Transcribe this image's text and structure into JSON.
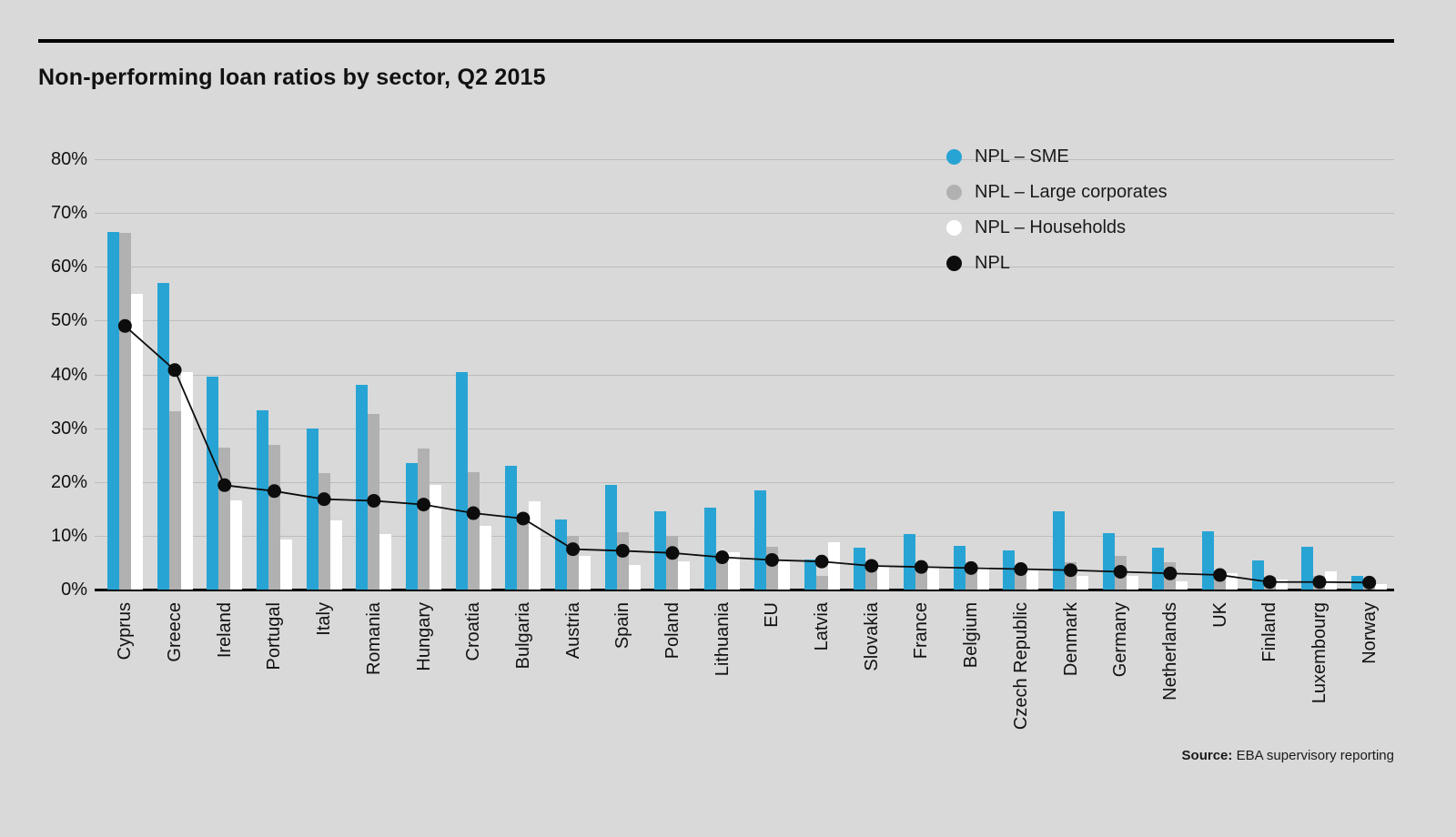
{
  "title": "Non-performing loan ratios by sector, Q2 2015",
  "source": {
    "label": "Source:",
    "text": " EBA supervisory reporting"
  },
  "colors": {
    "background": "#d9d9d9",
    "accent_blue": "#28a4d4",
    "bar_gray": "#b1b1b1",
    "bar_white": "#ffffff",
    "line_black": "#0d0d0d",
    "gridline": "#bcbcbc",
    "text": "#111111"
  },
  "chart_data": {
    "type": "bar",
    "title": "Non-performing loan ratios by sector, Q2 2015",
    "categories": [
      "Cyprus",
      "Greece",
      "Ireland",
      "Portugal",
      "Italy",
      "Romania",
      "Hungary",
      "Croatia",
      "Bulgaria",
      "Austria",
      "Spain",
      "Poland",
      "Lithuania",
      "EU",
      "Latvia",
      "Slovakia",
      "France",
      "Belgium",
      "Czech Republic",
      "Denmark",
      "Germany",
      "Netherlands",
      "UK",
      "Finland",
      "Luxembourg",
      "Norway"
    ],
    "series": [
      {
        "name": "NPL – SME",
        "type": "bar",
        "color": "#28a4d4",
        "values": [
          66.5,
          57.0,
          39.5,
          33.3,
          30.0,
          38.0,
          23.5,
          40.5,
          23.0,
          13.0,
          19.5,
          14.5,
          15.2,
          18.5,
          5.5,
          7.7,
          10.4,
          8.2,
          7.3,
          14.6,
          10.5,
          7.7,
          10.9,
          5.4,
          8.0,
          2.6
        ]
      },
      {
        "name": "NPL – Large corporates",
        "type": "bar",
        "color": "#b1b1b1",
        "values": [
          66.3,
          33.2,
          26.4,
          26.9,
          21.7,
          32.6,
          26.3,
          21.8,
          14.0,
          9.9,
          10.7,
          9.9,
          5.3,
          8.0,
          2.5,
          4.2,
          4.4,
          4.5,
          3.8,
          5.1,
          6.2,
          5.1,
          3.6,
          2.3,
          2.6,
          1.9
        ]
      },
      {
        "name": "NPL – Households",
        "type": "bar",
        "color": "#ffffff",
        "values": [
          55.0,
          40.5,
          16.5,
          9.3,
          12.9,
          10.4,
          19.5,
          11.8,
          16.4,
          6.2,
          4.6,
          5.2,
          7.0,
          5.3,
          8.8,
          4.3,
          4.0,
          4.2,
          3.6,
          2.5,
          2.6,
          1.6,
          3.1,
          1.9,
          3.3,
          1.0
        ]
      },
      {
        "name": "NPL",
        "type": "line",
        "color": "#0d0d0d",
        "values": [
          49.0,
          40.8,
          19.4,
          18.3,
          16.8,
          16.5,
          15.8,
          14.2,
          13.2,
          7.5,
          7.2,
          6.8,
          6.0,
          5.5,
          5.2,
          4.4,
          4.2,
          4.0,
          3.8,
          3.6,
          3.3,
          3.0,
          2.7,
          1.4,
          1.4,
          1.3
        ]
      }
    ],
    "y_ticks": [
      "0%",
      "10%",
      "20%",
      "30%",
      "40%",
      "50%",
      "60%",
      "70%",
      "80%"
    ],
    "ylim": [
      0,
      80
    ],
    "xlabel": "",
    "ylabel": "",
    "grid": true,
    "legend_position": "top-right"
  }
}
